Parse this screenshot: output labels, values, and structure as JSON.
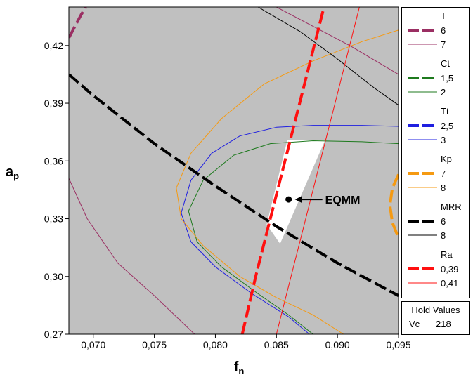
{
  "chart_data": {
    "type": "contour-overlay",
    "xlabel": "f",
    "xlabel_sub": "n",
    "ylabel": "a",
    "ylabel_sub": "p",
    "xlim": [
      0.068,
      0.095
    ],
    "ylim": [
      0.27,
      0.44
    ],
    "x_ticks": [
      0.07,
      0.075,
      0.08,
      0.085,
      0.09,
      0.095
    ],
    "x_tick_labels": [
      "0,070",
      "0,075",
      "0,080",
      "0,085",
      "0,090",
      "0,095"
    ],
    "y_ticks": [
      0.27,
      0.3,
      0.33,
      0.36,
      0.39,
      0.42
    ],
    "y_tick_labels": [
      "0,27",
      "0,30",
      "0,33",
      "0,36",
      "0,39",
      "0,42"
    ],
    "annotation": {
      "text": "EQMM",
      "point": [
        0.086,
        0.34
      ]
    },
    "feasible_region": [
      [
        0.0859,
        0.371
      ],
      [
        0.089,
        0.371
      ],
      [
        0.0853,
        0.317
      ],
      [
        0.0842,
        0.327
      ]
    ],
    "series": [
      {
        "group": "T",
        "name": "6",
        "color": "#9b2f63",
        "style": "dashed",
        "points": [
          [
            0.068,
            0.424
          ],
          [
            0.069,
            0.436
          ],
          [
            0.0694,
            0.44
          ]
        ]
      },
      {
        "group": "T",
        "name": "7",
        "color": "#9b2f63",
        "style": "solid",
        "points": [
          [
            0.068,
            0.351
          ],
          [
            0.0695,
            0.33
          ],
          [
            0.072,
            0.307
          ],
          [
            0.075,
            0.29
          ],
          [
            0.0783,
            0.27
          ]
        ]
      },
      {
        "group": "T",
        "name": "7",
        "color": "#9b2f63",
        "style": "solid",
        "points": [
          [
            0.085,
            0.44
          ],
          [
            0.088,
            0.43
          ],
          [
            0.091,
            0.42
          ],
          [
            0.095,
            0.405
          ]
        ]
      },
      {
        "group": "Ct",
        "name": "1,5",
        "color": "#1e7a1e",
        "style": "dashed",
        "points": []
      },
      {
        "group": "Ct",
        "name": "2",
        "color": "#1e7a1e",
        "style": "solid",
        "points": [
          [
            0.095,
            0.369
          ],
          [
            0.092,
            0.37
          ],
          [
            0.088,
            0.3705
          ],
          [
            0.0845,
            0.369
          ],
          [
            0.0815,
            0.363
          ],
          [
            0.079,
            0.35
          ],
          [
            0.0778,
            0.334
          ],
          [
            0.0785,
            0.318
          ],
          [
            0.0805,
            0.305
          ],
          [
            0.0835,
            0.291
          ],
          [
            0.086,
            0.28
          ],
          [
            0.088,
            0.27
          ]
        ]
      },
      {
        "group": "Tt",
        "name": "2,5",
        "color": "#1f1fe0",
        "style": "dashed",
        "points": []
      },
      {
        "group": "Tt",
        "name": "3",
        "color": "#1f1fe0",
        "style": "solid",
        "points": [
          [
            0.095,
            0.378
          ],
          [
            0.092,
            0.3785
          ],
          [
            0.088,
            0.3785
          ],
          [
            0.085,
            0.3775
          ],
          [
            0.082,
            0.373
          ],
          [
            0.0797,
            0.364
          ],
          [
            0.078,
            0.35
          ],
          [
            0.0772,
            0.333
          ],
          [
            0.078,
            0.318
          ],
          [
            0.08,
            0.305
          ],
          [
            0.083,
            0.291
          ],
          [
            0.086,
            0.279
          ],
          [
            0.0877,
            0.27
          ]
        ]
      },
      {
        "group": "Kp",
        "name": "7",
        "color": "#f59a12",
        "style": "dashed",
        "points": [
          [
            0.095,
            0.353
          ],
          [
            0.0945,
            0.346
          ],
          [
            0.0943,
            0.337
          ],
          [
            0.0945,
            0.328
          ],
          [
            0.095,
            0.32
          ]
        ]
      },
      {
        "group": "Kp",
        "name": "8",
        "color": "#f59a12",
        "style": "solid",
        "points": [
          [
            0.095,
            0.428
          ],
          [
            0.092,
            0.422
          ],
          [
            0.088,
            0.412
          ],
          [
            0.084,
            0.4
          ],
          [
            0.0805,
            0.382
          ],
          [
            0.078,
            0.364
          ],
          [
            0.0768,
            0.346
          ],
          [
            0.0772,
            0.33
          ],
          [
            0.079,
            0.316
          ],
          [
            0.082,
            0.3
          ],
          [
            0.085,
            0.289
          ],
          [
            0.088,
            0.28
          ],
          [
            0.0905,
            0.27
          ]
        ]
      },
      {
        "group": "MRR",
        "name": "6",
        "color": "#000000",
        "style": "dashed",
        "points": [
          [
            0.068,
            0.405
          ],
          [
            0.07,
            0.394
          ],
          [
            0.075,
            0.369
          ],
          [
            0.08,
            0.347
          ],
          [
            0.085,
            0.326
          ],
          [
            0.09,
            0.307
          ],
          [
            0.095,
            0.29
          ]
        ]
      },
      {
        "group": "MRR",
        "name": "8",
        "color": "#000000",
        "style": "solid",
        "points": [
          [
            0.0835,
            0.44
          ],
          [
            0.087,
            0.427
          ],
          [
            0.09,
            0.413
          ],
          [
            0.093,
            0.398
          ],
          [
            0.095,
            0.389
          ]
        ]
      },
      {
        "group": "Ra",
        "name": "0,39",
        "color": "#ff1010",
        "style": "dashed",
        "points": [
          [
            0.0822,
            0.27
          ],
          [
            0.0833,
            0.3
          ],
          [
            0.0845,
            0.33
          ],
          [
            0.0857,
            0.36
          ],
          [
            0.0869,
            0.39
          ],
          [
            0.0881,
            0.42
          ],
          [
            0.0889,
            0.44
          ]
        ]
      },
      {
        "group": "Ra",
        "name": "0,41",
        "color": "#ff1010",
        "style": "solid",
        "points": [
          [
            0.085,
            0.27
          ],
          [
            0.0862,
            0.3
          ],
          [
            0.0874,
            0.33
          ],
          [
            0.0886,
            0.36
          ],
          [
            0.0898,
            0.39
          ],
          [
            0.091,
            0.42
          ],
          [
            0.0918,
            0.44
          ]
        ]
      }
    ],
    "legend": [
      {
        "group": "T",
        "items": [
          {
            "label": "6",
            "color": "#9b2f63",
            "style": "dashed"
          },
          {
            "label": "7",
            "color": "#9b2f63",
            "style": "solid"
          }
        ]
      },
      {
        "group": "Ct",
        "items": [
          {
            "label": "1,5",
            "color": "#1e7a1e",
            "style": "dashed"
          },
          {
            "label": "2",
            "color": "#1e7a1e",
            "style": "solid"
          }
        ]
      },
      {
        "group": "Tt",
        "items": [
          {
            "label": "2,5",
            "color": "#1f1fe0",
            "style": "dashed"
          },
          {
            "label": "3",
            "color": "#1f1fe0",
            "style": "solid"
          }
        ]
      },
      {
        "group": "Kp",
        "items": [
          {
            "label": "7",
            "color": "#f59a12",
            "style": "dashed"
          },
          {
            "label": "8",
            "color": "#f59a12",
            "style": "solid"
          }
        ]
      },
      {
        "group": "MRR",
        "items": [
          {
            "label": "6",
            "color": "#000000",
            "style": "dashed"
          },
          {
            "label": "8",
            "color": "#000000",
            "style": "solid"
          }
        ]
      },
      {
        "group": "Ra",
        "items": [
          {
            "label": "0,39",
            "color": "#ff1010",
            "style": "dashed"
          },
          {
            "label": "0,41",
            "color": "#ff1010",
            "style": "solid"
          }
        ]
      }
    ],
    "hold_values": {
      "title": "Hold Values",
      "variable": "Vc",
      "value": "218"
    },
    "colors": {
      "plot_background": "#c0c0c0",
      "feasible_region": "#ffffff"
    }
  }
}
